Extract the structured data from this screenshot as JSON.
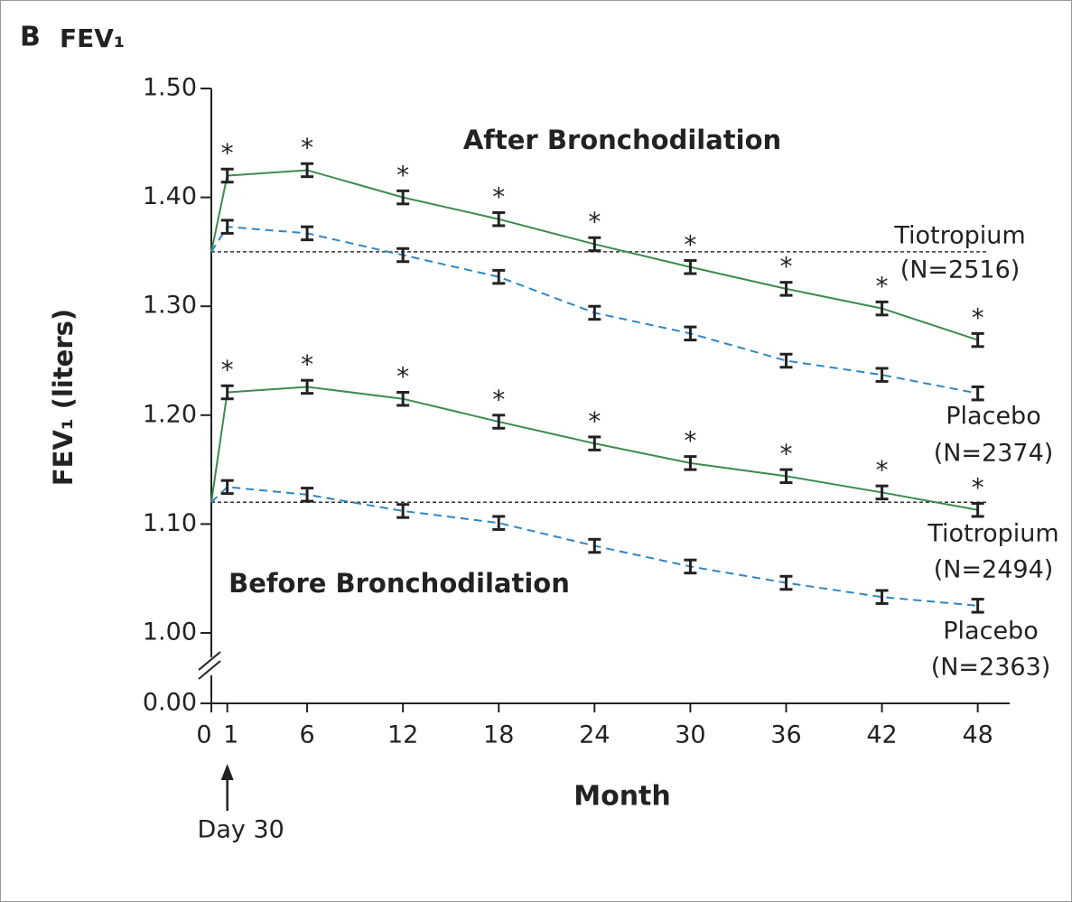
{
  "chart_data": {
    "type": "line",
    "panel": "B",
    "title": "FEV₁",
    "ylabel": "FEV₁ (liters)",
    "xlabel": "Month",
    "x": [
      0,
      1,
      6,
      12,
      18,
      24,
      30,
      36,
      42,
      48
    ],
    "xlim": [
      0,
      50
    ],
    "xticks": [
      0,
      1,
      6,
      12,
      18,
      24,
      30,
      36,
      42,
      48
    ],
    "ylim": [
      0,
      1.5
    ],
    "y_break": 1.0,
    "yticks": [
      {
        "value": 0,
        "label": "0.00"
      },
      {
        "value": 1.0,
        "label": "1.00"
      },
      {
        "value": 1.1,
        "label": "1.10"
      },
      {
        "value": 1.2,
        "label": "1.20"
      },
      {
        "value": 1.3,
        "label": "1.30"
      },
      {
        "value": 1.4,
        "label": "1.40"
      },
      {
        "value": 1.5,
        "label": "1.50"
      }
    ],
    "reference_lines": [
      1.35,
      1.12
    ],
    "annotations": [
      "After Bronchodilation",
      "Before Bronchodilation"
    ],
    "arrow_annotation": {
      "text": "Day 30",
      "x": 1
    },
    "series": [
      {
        "name": "Tiotropium",
        "n_label": "(N=2516)",
        "color": "#3d8b4f",
        "dashed": false,
        "marker_label": "*",
        "values": [
          1.35,
          1.42,
          1.425,
          1.4,
          1.38,
          1.357,
          1.336,
          1.316,
          1.298,
          1.269
        ],
        "errors": [
          null,
          0.006,
          0.006,
          0.006,
          0.006,
          0.006,
          0.006,
          0.006,
          0.006,
          0.006
        ]
      },
      {
        "name": "Placebo",
        "n_label": "(N=2374)",
        "color": "#2f86c4",
        "dashed": true,
        "values": [
          1.35,
          1.373,
          1.367,
          1.347,
          1.327,
          1.294,
          1.275,
          1.25,
          1.237,
          1.22
        ],
        "errors": [
          null,
          0.006,
          0.006,
          0.006,
          0.006,
          0.006,
          0.006,
          0.006,
          0.006,
          0.006
        ]
      },
      {
        "name": "Tiotropium",
        "n_label": "(N=2494)",
        "color": "#3d8b4f",
        "dashed": false,
        "marker_label": "*",
        "values": [
          1.12,
          1.221,
          1.226,
          1.215,
          1.194,
          1.174,
          1.156,
          1.144,
          1.129,
          1.113
        ],
        "errors": [
          null,
          0.006,
          0.006,
          0.006,
          0.006,
          0.006,
          0.006,
          0.006,
          0.006,
          0.006
        ]
      },
      {
        "name": "Placebo",
        "n_label": "(N=2363)",
        "color": "#2f86c4",
        "dashed": true,
        "values": [
          1.12,
          1.134,
          1.127,
          1.112,
          1.101,
          1.08,
          1.061,
          1.046,
          1.033,
          1.025
        ],
        "errors": [
          null,
          0.006,
          0.006,
          0.006,
          0.006,
          0.006,
          0.006,
          0.006,
          0.006,
          0.006
        ]
      }
    ]
  }
}
